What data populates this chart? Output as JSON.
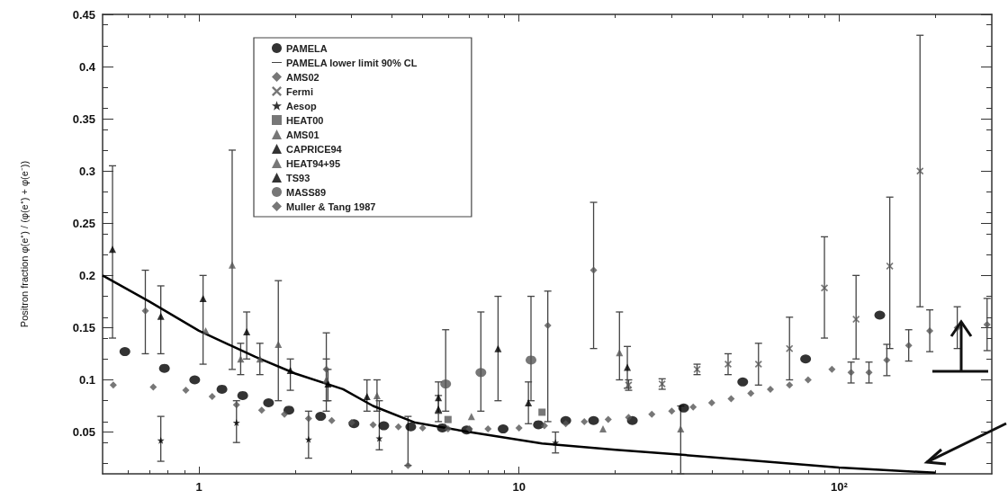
{
  "chart_data": {
    "type": "scatter",
    "ylabel": "Positron fraction φ(e⁺) / (φ(e⁺) + φ(e⁻))",
    "log": "x",
    "xlim": [
      0.5,
      300
    ],
    "xticks": [
      1,
      10,
      {
        "value": 100,
        "label": "10²"
      }
    ],
    "ylim": [
      0.01,
      0.45
    ],
    "yticks": [
      0.05,
      0.1,
      0.15,
      0.2,
      0.25,
      0.3,
      0.35,
      0.4,
      0.45
    ],
    "grid": false,
    "legend": "top left",
    "series": [
      {
        "name": "PAMELA",
        "marker": "circle",
        "color": "#000000",
        "x": [
          0.587,
          0.78,
          0.97,
          1.18,
          1.37,
          1.65,
          1.91,
          2.4,
          3.05,
          3.78,
          4.59,
          5.76,
          6.86,
          8.92,
          11.5,
          14,
          17.1,
          22.6,
          32.7,
          50,
          78.6,
          134
        ],
        "values": [
          0.127,
          0.111,
          0.1,
          0.091,
          0.085,
          0.078,
          0.071,
          0.065,
          0.058,
          0.056,
          0.055,
          0.054,
          0.052,
          0.053,
          0.057,
          0.061,
          0.061,
          0.061,
          0.073,
          0.098,
          0.12,
          0.162
        ]
      },
      {
        "name": "PAMELA lower limit 90% CL",
        "type": "line",
        "marker": "none",
        "color": "#000000",
        "x": [
          0.5,
          0.7,
          1,
          1.5,
          2,
          2.82,
          3.5,
          4.74,
          7,
          11.8,
          20,
          33,
          100,
          200
        ],
        "values": [
          0.2,
          0.175,
          0.147,
          0.122,
          0.106,
          0.091,
          0.075,
          0.059,
          0.05,
          0.039,
          0.033,
          0.028,
          0.016,
          0.011
        ]
      },
      {
        "name": "AMS02",
        "marker": "diamond",
        "color": "#555555",
        "x": [
          0.54,
          0.72,
          0.91,
          1.1,
          1.31,
          1.57,
          1.85,
          2.2,
          2.6,
          3,
          3.5,
          4.2,
          5,
          6,
          7,
          8,
          10,
          12,
          14,
          16,
          19,
          22,
          26,
          30,
          35,
          40,
          46,
          53,
          61,
          70,
          80,
          95,
          109,
          124,
          141,
          165,
          192,
          234,
          290
        ],
        "values": [
          0.095,
          0.093,
          0.09,
          0.084,
          0.076,
          0.071,
          0.067,
          0.063,
          0.061,
          0.059,
          0.057,
          0.055,
          0.054,
          0.053,
          0.053,
          0.053,
          0.054,
          0.056,
          0.058,
          0.06,
          0.062,
          0.064,
          0.067,
          0.07,
          0.074,
          0.078,
          0.082,
          0.087,
          0.091,
          0.095,
          0.1,
          0.11,
          0.107,
          0.107,
          0.119,
          0.133,
          0.147,
          0.15,
          0.153
        ],
        "errors": [
          null,
          null,
          null,
          null,
          null,
          null,
          null,
          null,
          null,
          null,
          null,
          null,
          null,
          null,
          null,
          null,
          null,
          null,
          null,
          null,
          null,
          null,
          null,
          null,
          null,
          null,
          null,
          null,
          null,
          null,
          null,
          null,
          0.01,
          0.01,
          0.015,
          0.015,
          0.02,
          0.02,
          0.025
        ]
      },
      {
        "name": "Fermi",
        "marker": "cross",
        "color": "#555555",
        "x": [
          22,
          28,
          36,
          45,
          56,
          70,
          90,
          113,
          144,
          179
        ],
        "values": [
          0.095,
          0.096,
          0.11,
          0.115,
          0.115,
          0.13,
          0.188,
          0.158,
          0.209,
          0.3
        ],
        "errors": [
          0.005,
          0.005,
          0.005,
          0.01,
          0.02,
          [
            0.1,
            0.16
          ],
          [
            0.14,
            0.237
          ],
          [
            0.12,
            0.2
          ],
          [
            0.13,
            0.275
          ],
          [
            0.17,
            0.43
          ]
        ]
      },
      {
        "name": "Aesop",
        "marker": "star",
        "color": "#000000",
        "x": [
          0.76,
          1.31,
          2.2,
          3.66,
          13
        ],
        "values": [
          0.042,
          0.059,
          0.043,
          0.044,
          0.04
        ],
        "errors": [
          [
            0.022,
            0.065
          ],
          [
            0.04,
            0.08
          ],
          [
            0.025,
            0.07
          ],
          [
            0.033,
            0.08
          ],
          [
            0.03,
            0.05
          ]
        ]
      },
      {
        "name": "HEAT00",
        "marker": "square",
        "color": "#555555",
        "x": [
          6,
          11.8
        ],
        "values": [
          0.062,
          0.069
        ]
      },
      {
        "name": "AMS01",
        "marker": "triangle",
        "color": "#555555",
        "x": [
          1.55,
          2.5,
          3.6
        ],
        "values": [
          0.12,
          0.1,
          0.085
        ],
        "errors": [
          0.015,
          0.02,
          0.015
        ]
      },
      {
        "name": "CAPRICE94",
        "marker": "triangle",
        "color": "#000000",
        "x": [
          0.537,
          0.76,
          1.03,
          1.41,
          1.93,
          2.53,
          3.35,
          5.6,
          8.6
        ],
        "values": [
          0.225,
          0.161,
          0.178,
          0.146,
          0.109,
          0.096,
          0.084,
          0.072,
          0.13
        ],
        "errors": [
          [
            0.14,
            0.305
          ],
          [
            0.125,
            0.19
          ],
          [
            0.115,
            0.2
          ],
          [
            0.12,
            0.165
          ],
          [
            0.09,
            0.12
          ],
          [
            0.08,
            0.11
          ],
          [
            0.07,
            0.1
          ],
          [
            0.06,
            0.085
          ],
          [
            0.08,
            0.18
          ]
        ]
      },
      {
        "name": "HEAT94+95",
        "marker": "triangle",
        "color": "#555555",
        "x": [
          1.05,
          1.27,
          1.35,
          1.77,
          7.1,
          18.3,
          20.6,
          32
        ],
        "values": [
          0.147,
          0.21,
          0.12,
          0.134,
          0.065,
          0.053,
          0.126,
          0.053
        ],
        "errors": [
          null,
          [
            0.11,
            0.32
          ],
          [
            0.105,
            0.135
          ],
          [
            0.08,
            0.195
          ],
          null,
          null,
          [
            0.1,
            0.165
          ],
          [
            0.01,
            0.075
          ]
        ]
      },
      {
        "name": "TS93",
        "marker": "triangle",
        "color": "#000000",
        "x": [
          5.6,
          10.7,
          21.8
        ],
        "values": [
          0.083,
          0.078,
          0.112
        ],
        "errors": [
          0.015,
          0.02,
          0.02
        ]
      },
      {
        "name": "MASS89",
        "marker": "circle",
        "color": "#555555",
        "x": [
          5.9,
          7.6,
          10.9
        ],
        "values": [
          0.096,
          0.107,
          0.119
        ],
        "errors": [
          [
            0.07,
            0.148
          ],
          [
            0.07,
            0.165
          ],
          [
            0.08,
            0.18
          ]
        ]
      },
      {
        "name": "Muller & Tang 1987",
        "marker": "diamond",
        "color": "#555555",
        "x": [
          0.68,
          2.5,
          4.5,
          12.3,
          17.1
        ],
        "values": [
          0.166,
          0.11,
          0.018,
          0.152,
          0.205
        ],
        "errors": [
          [
            0.125,
            0.205
          ],
          [
            0.07,
            0.145
          ],
          [
            0.018,
            0.065
          ],
          [
            0.06,
            0.185
          ],
          [
            0.13,
            0.27
          ]
        ]
      }
    ]
  }
}
